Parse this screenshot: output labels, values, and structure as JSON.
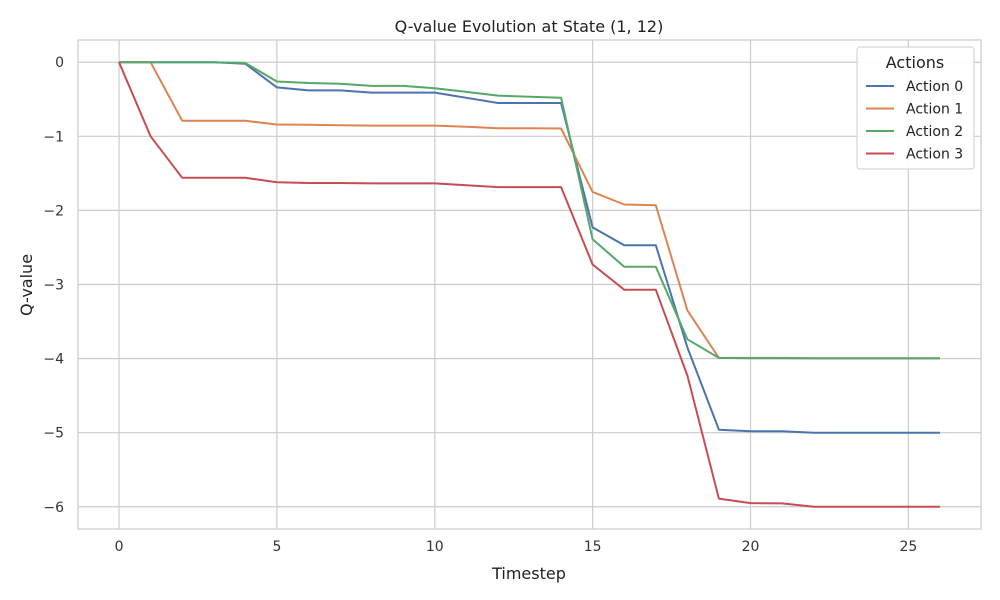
{
  "chart_data": {
    "type": "line",
    "title": "Q-value Evolution at State (1, 12)",
    "xlabel": "Timestep",
    "ylabel": "Q-value",
    "xlim": [
      -1.3,
      27.3
    ],
    "ylim": [
      -6.3,
      0.3
    ],
    "xticks": [
      0,
      5,
      10,
      15,
      20,
      25
    ],
    "yticks": [
      0,
      -1,
      -2,
      -3,
      -4,
      -5,
      -6
    ],
    "ytick_labels": [
      "0",
      "−1",
      "−2",
      "−3",
      "−4",
      "−5",
      "−6"
    ],
    "grid": true,
    "legend": {
      "title": "Actions",
      "placement": "top-right"
    },
    "x": [
      0,
      1,
      2,
      3,
      4,
      5,
      6,
      7,
      8,
      9,
      10,
      11,
      12,
      13,
      14,
      15,
      16,
      17,
      18,
      19,
      20,
      21,
      22,
      23,
      24,
      25,
      26
    ],
    "series": [
      {
        "name": "Action 0",
        "color": "#4c72b0",
        "values": [
          0,
          0,
          0,
          0,
          -0.02,
          -0.34,
          -0.38,
          -0.38,
          -0.41,
          -0.41,
          -0.41,
          -0.48,
          -0.55,
          -0.55,
          -0.55,
          -2.23,
          -2.47,
          -2.47,
          -3.85,
          -4.96,
          -4.98,
          -4.98,
          -5.0,
          -5.0,
          -5.0,
          -5.0,
          -5.0
        ]
      },
      {
        "name": "Action 1",
        "color": "#dd8452",
        "values": [
          0,
          0,
          -0.79,
          -0.79,
          -0.79,
          -0.84,
          -0.845,
          -0.85,
          -0.855,
          -0.855,
          -0.855,
          -0.87,
          -0.89,
          -0.89,
          -0.895,
          -1.75,
          -1.92,
          -1.93,
          -3.35,
          -3.99,
          -3.99,
          -3.99,
          -3.995,
          -3.995,
          -3.995,
          -3.995,
          -3.995
        ]
      },
      {
        "name": "Action 2",
        "color": "#55a868",
        "values": [
          0,
          0,
          0,
          0,
          -0.01,
          -0.26,
          -0.28,
          -0.29,
          -0.32,
          -0.32,
          -0.35,
          -0.4,
          -0.45,
          -0.465,
          -0.48,
          -2.39,
          -2.76,
          -2.76,
          -3.74,
          -3.99,
          -3.995,
          -3.995,
          -3.998,
          -3.998,
          -3.998,
          -3.998,
          -3.998
        ]
      },
      {
        "name": "Action 3",
        "color": "#c44e52",
        "values": [
          0,
          -1.0,
          -1.56,
          -1.56,
          -1.56,
          -1.62,
          -1.63,
          -1.63,
          -1.635,
          -1.635,
          -1.635,
          -1.66,
          -1.685,
          -1.685,
          -1.685,
          -2.73,
          -3.07,
          -3.07,
          -4.23,
          -5.89,
          -5.95,
          -5.955,
          -6.0,
          -6.0,
          -6.0,
          -6.0,
          -6.0
        ]
      }
    ]
  }
}
